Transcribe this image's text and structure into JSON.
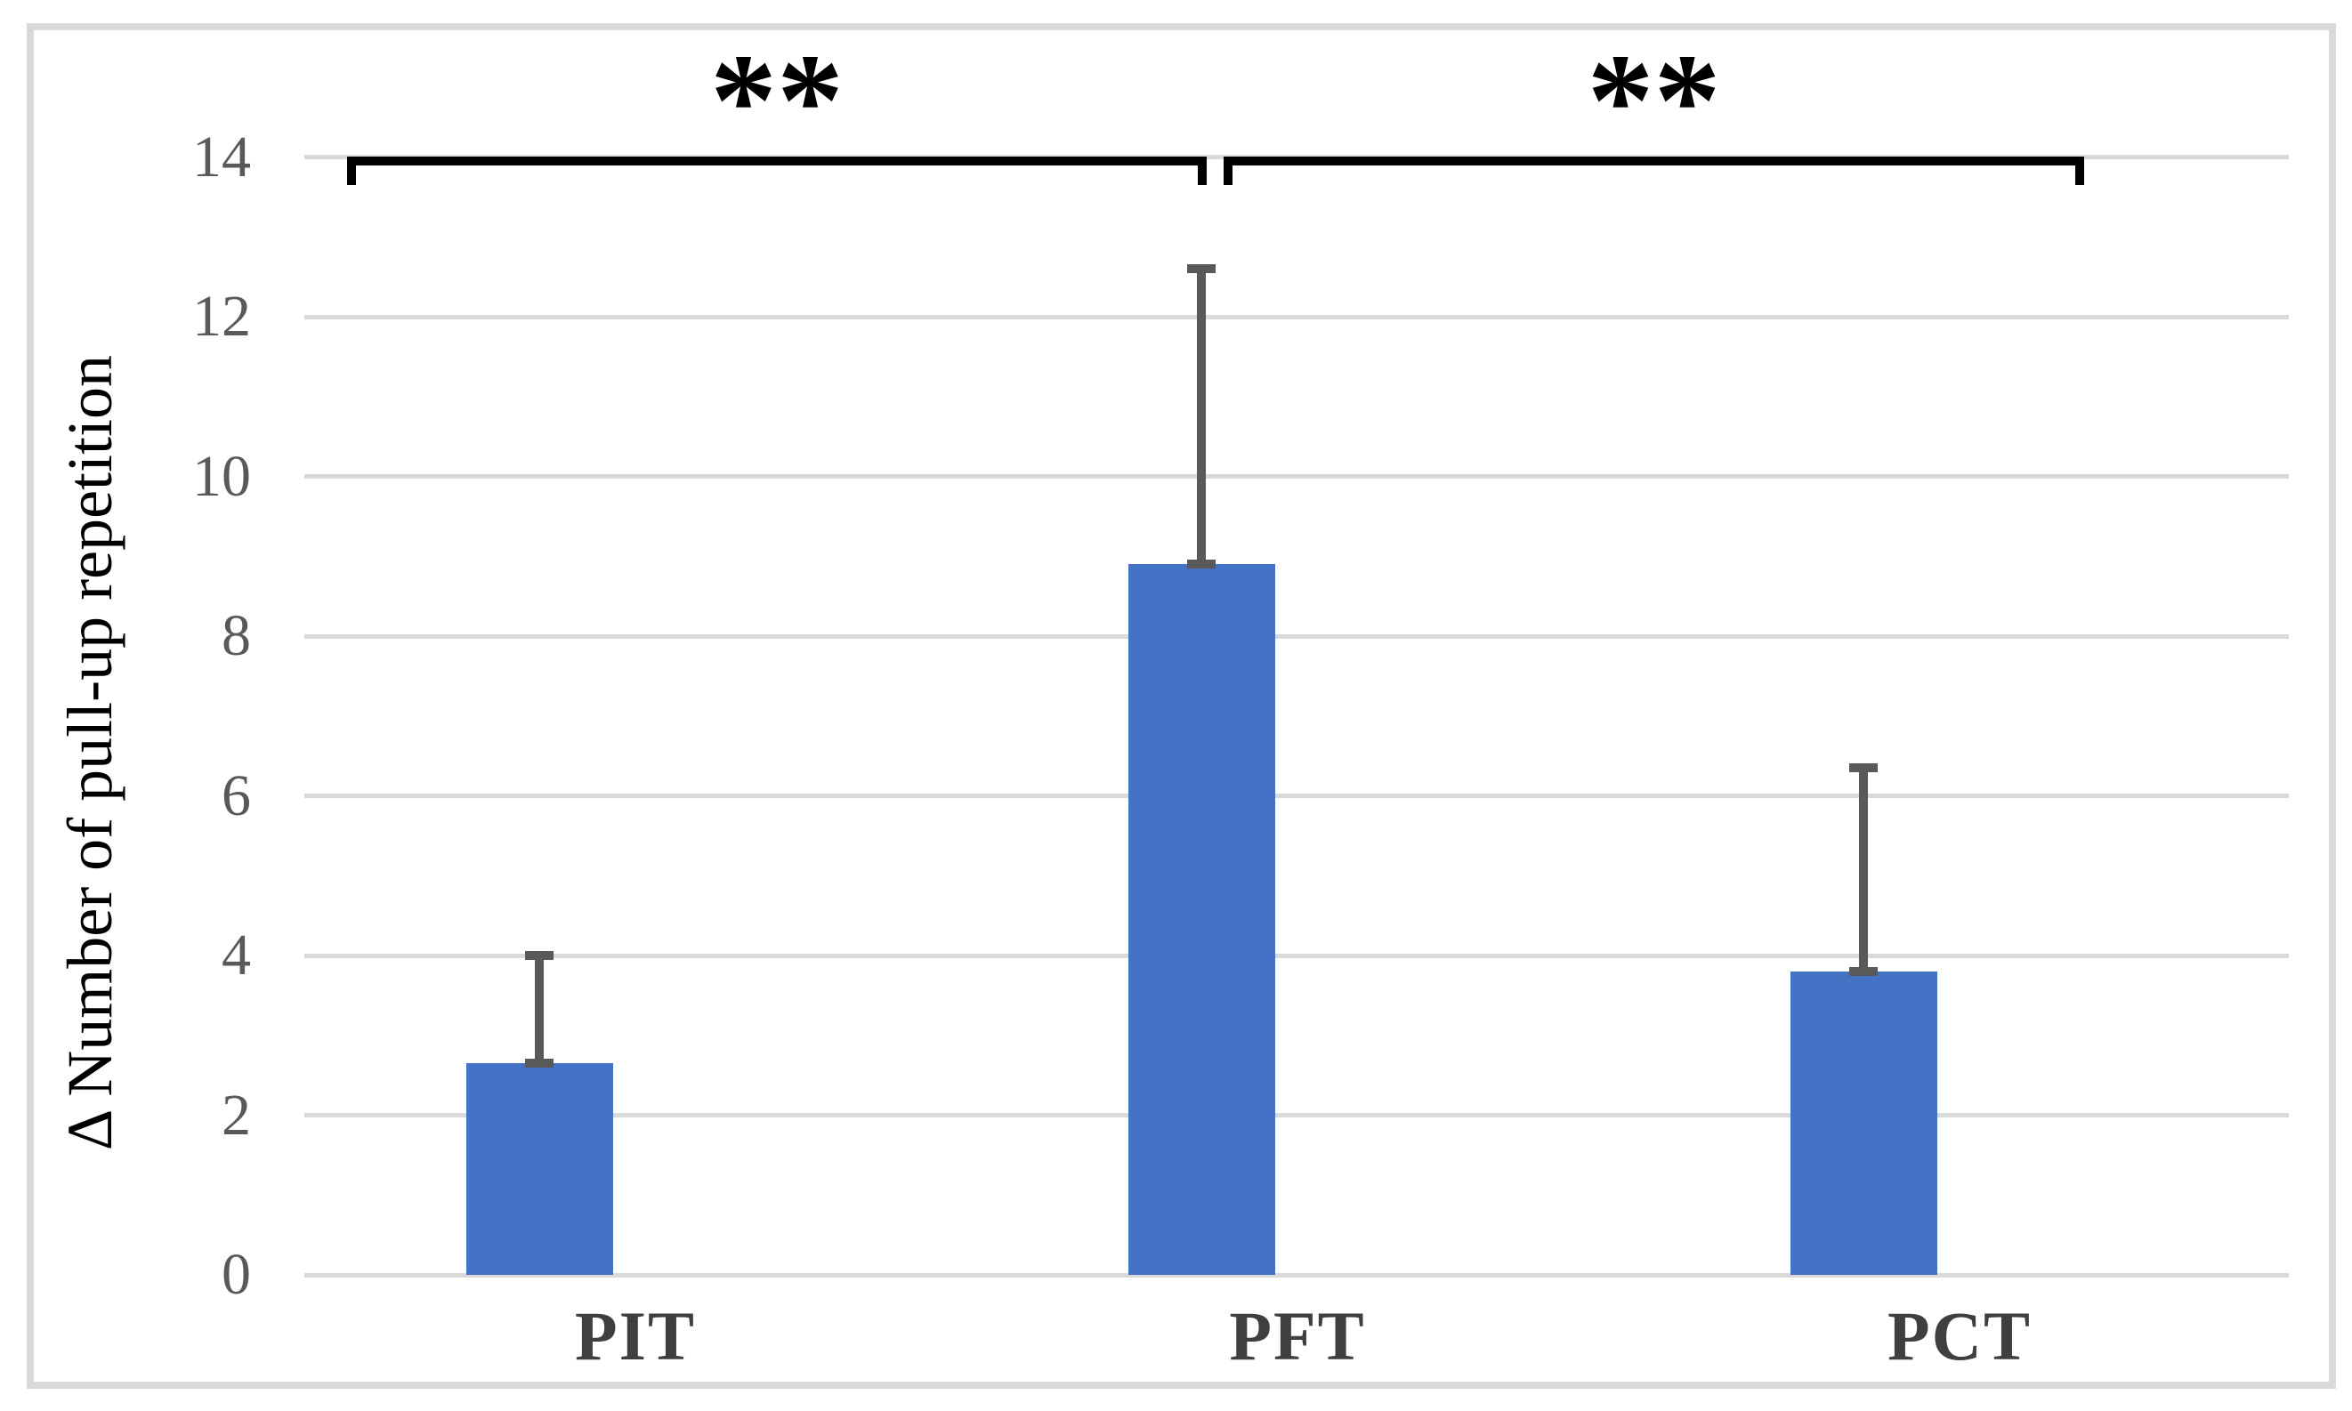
{
  "chart_data": {
    "type": "bar",
    "title": "",
    "xlabel": "",
    "ylabel": "Δ Number of pull-up repetition",
    "categories": [
      "PIT",
      "PFT",
      "PCT"
    ],
    "values": [
      2.65,
      8.9,
      3.8
    ],
    "error_plus": [
      1.35,
      3.7,
      2.55
    ],
    "ylim": [
      0,
      14
    ],
    "yticks": [
      0,
      2,
      4,
      6,
      8,
      10,
      12,
      14
    ],
    "grid": true,
    "legend": "none",
    "bar_color": "#4472C4",
    "error_color": "#595959",
    "gridline_color": "#d9d9d9",
    "tick_label_color": "#595959",
    "category_label_color": "#3f3f3f",
    "significance": [
      {
        "label": "**",
        "from": "PIT",
        "to": "PFT"
      },
      {
        "label": "**",
        "from": "PFT",
        "to": "PCT"
      }
    ]
  }
}
